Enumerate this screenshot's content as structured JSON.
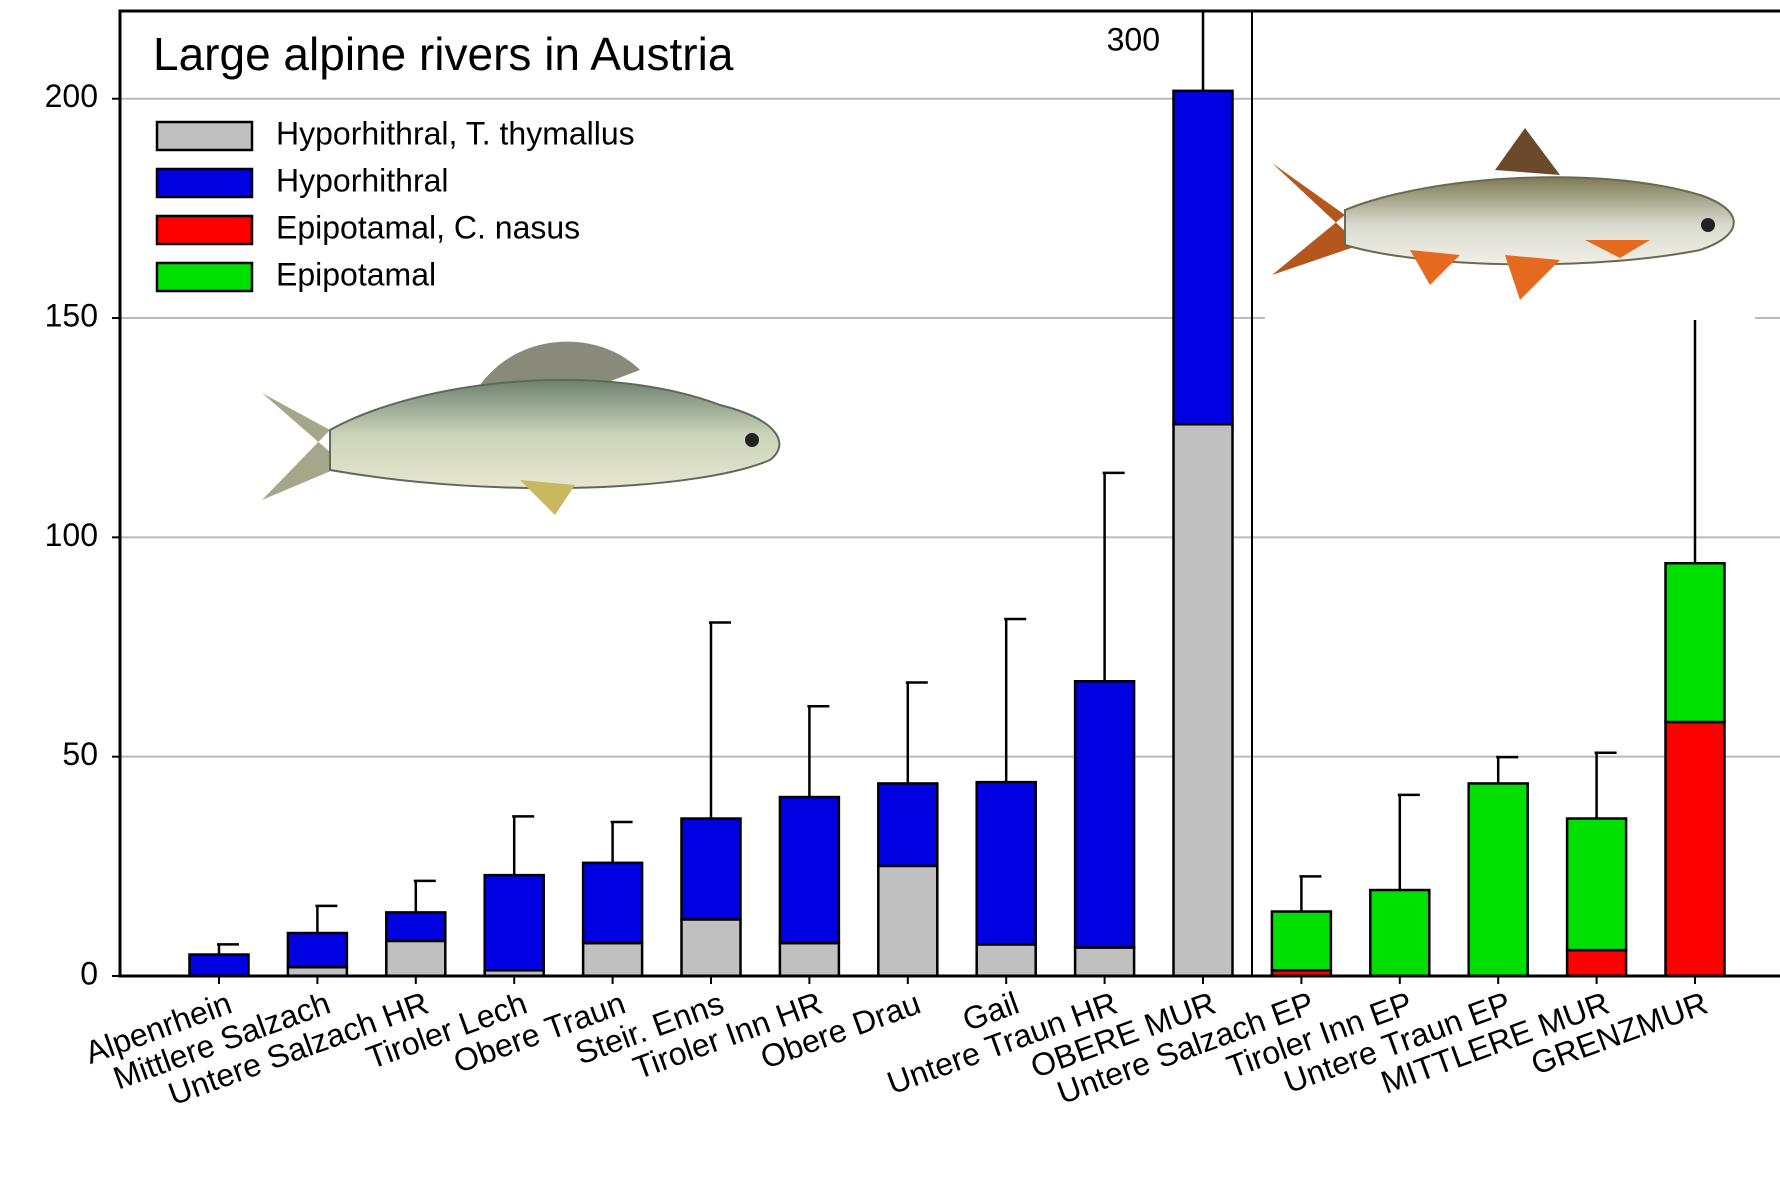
{
  "chart_data": {
    "type": "bar",
    "title": "Large alpine rivers in Austria",
    "annotation": "300",
    "categories": [
      "Alpenrhein",
      "Mittlere Salzach",
      "Untere Salzach HR",
      "Tiroler Lech",
      "Obere Traun",
      "Steir. Enns",
      "Tiroler Inn HR",
      "Obere Drau",
      "Gail",
      "Untere Traun HR",
      "OBERE MUR",
      "Untere Salzach EP",
      "Tiroler Inn EP",
      "Untere Traun EP",
      "MITTLERE MUR",
      "GRENZMUR"
    ],
    "series": [
      {
        "name": "Hyporhithral, T. thymallus",
        "color": "#c0c0c0",
        "values": [
          null,
          2,
          8,
          1.3,
          7.5,
          12.9,
          7.5,
          25.1,
          7.2,
          6.5,
          125.8,
          null,
          null,
          null,
          null,
          null
        ]
      },
      {
        "name": "Hyporhithral",
        "color": "#0000e0",
        "values": [
          4.9,
          7.8,
          6.5,
          21.7,
          18.3,
          23,
          33.3,
          18.8,
          37,
          60.7,
          76,
          null,
          null,
          null,
          null,
          null
        ]
      },
      {
        "name": "Epipotamal, C. nasus",
        "color": "#ff0000",
        "values": [
          null,
          null,
          null,
          null,
          null,
          null,
          null,
          null,
          null,
          null,
          null,
          1.3,
          null,
          null,
          5.9,
          57.9
        ]
      },
      {
        "name": "Epipotamal",
        "color": "#00e000",
        "values": [
          null,
          null,
          null,
          null,
          null,
          null,
          null,
          null,
          null,
          null,
          null,
          13.4,
          19.6,
          43.9,
          30,
          36.2
        ]
      }
    ],
    "errors": [
      2.3,
      6.2,
      7.2,
      13.4,
      9.3,
      44.7,
      20.7,
      23,
      37.2,
      47.5,
      98.2,
      8,
      21.7,
      6,
      15,
      55.9
    ],
    "ylim": [
      0,
      220
    ],
    "yticks": [
      0,
      50,
      100,
      150,
      200
    ],
    "grid": true
  }
}
